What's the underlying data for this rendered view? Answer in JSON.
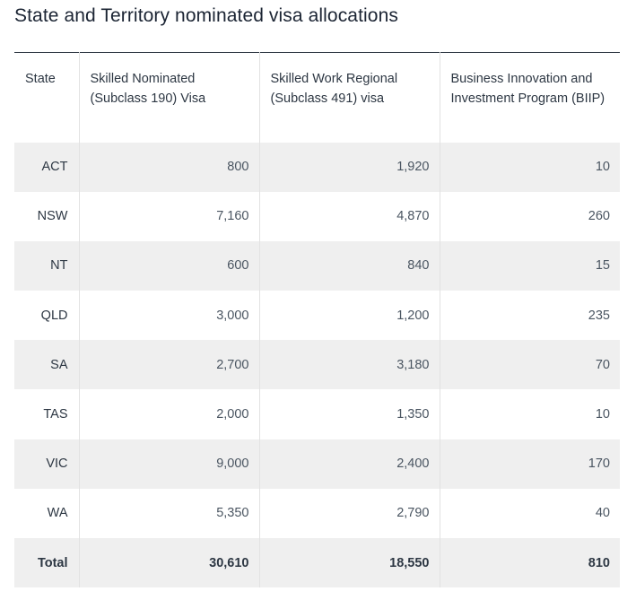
{
  "page": {
    "title": "State and Territory nominated visa allocations"
  },
  "table": {
    "headers": [
      "State",
      "Skilled Nominated (Subclass 190) Visa",
      "Skilled Work Regional (Subclass 491) visa",
      "Business Innovation and Investment Program (BIIP)"
    ],
    "rows": [
      {
        "state": "ACT",
        "subclass190": "800",
        "subclass491": "1,920",
        "biip": "10"
      },
      {
        "state": "NSW",
        "subclass190": "7,160",
        "subclass491": "4,870",
        "biip": "260"
      },
      {
        "state": "NT",
        "subclass190": "600",
        "subclass491": "840",
        "biip": "15"
      },
      {
        "state": "QLD",
        "subclass190": "3,000",
        "subclass491": "1,200",
        "biip": "235"
      },
      {
        "state": "SA",
        "subclass190": "2,700",
        "subclass491": "3,180",
        "biip": "70"
      },
      {
        "state": "TAS",
        "subclass190": "2,000",
        "subclass491": "1,350",
        "biip": "10"
      },
      {
        "state": "VIC",
        "subclass190": "9,000",
        "subclass491": "2,400",
        "biip": "170"
      },
      {
        "state": "WA",
        "subclass190": "5,350",
        "subclass491": "2,790",
        "biip": "40"
      }
    ],
    "total": {
      "label": "Total",
      "subclass190": "30,610",
      "subclass491": "18,550",
      "biip": "810"
    }
  }
}
